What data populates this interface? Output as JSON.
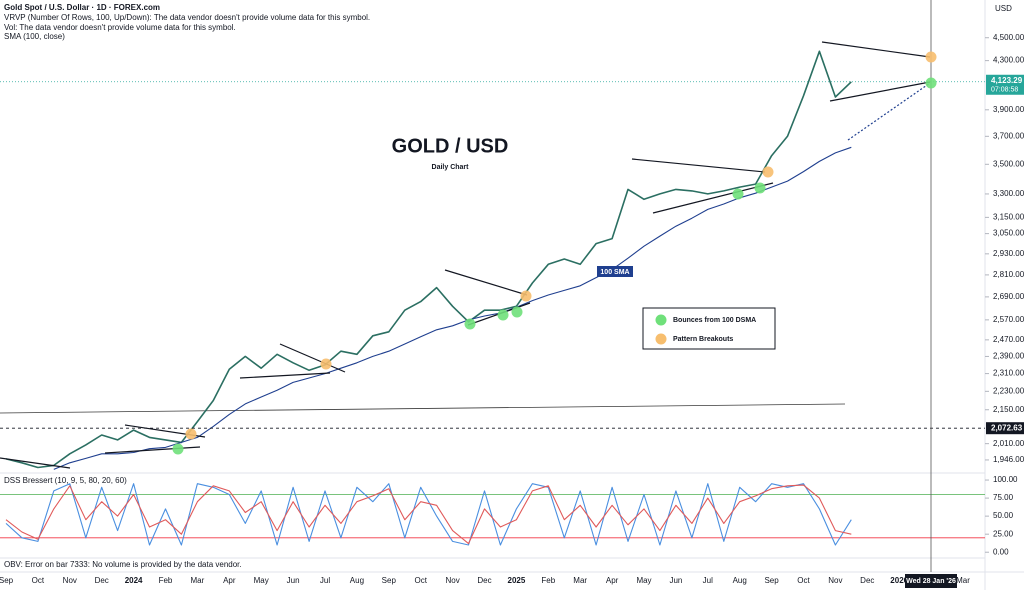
{
  "header": {
    "notes": [
      "VRVP (Number Of Rows, 100, Up/Down): The data vendor doesn't provide volume data for this symbol.",
      "Vol: The data vendor doesn't provide volume data for this symbol."
    ]
  },
  "chart_data": [
    {
      "type": "line",
      "title": "GOLD / USD",
      "subtitle": "Daily Chart",
      "currency": "USD",
      "categories": [
        "Sep",
        null,
        "Oct",
        null,
        "Nov",
        null,
        "Dec",
        null,
        "2024",
        null,
        "Feb",
        null,
        "Mar",
        null,
        "Apr",
        null,
        "May",
        null,
        "Jun",
        null,
        "Jul",
        null,
        "Aug",
        null,
        "Sep",
        null,
        "Oct",
        null,
        "Nov",
        null,
        "Dec",
        null,
        "2025",
        null,
        "Feb",
        null,
        "Mar",
        null,
        "Apr",
        null,
        "May",
        null,
        "Jun",
        null,
        "Jul",
        null,
        "Aug",
        null,
        "Sep",
        null,
        "Oct",
        null,
        "Nov",
        null,
        "Dec",
        null,
        "2026",
        null,
        null,
        null,
        "Mar"
      ],
      "log_scale": true,
      "grid": false,
      "ylim": [
        1900,
        4850
      ],
      "yticks": [
        {
          "value": 4500,
          "label": "4,500.00"
        },
        {
          "value": 4300,
          "label": "4,300.00"
        },
        {
          "value": 3900,
          "label": "3,900.00"
        },
        {
          "value": 3700,
          "label": "3,700.00"
        },
        {
          "value": 3500,
          "label": "3,500.00"
        },
        {
          "value": 3300,
          "label": "3,300.00"
        },
        {
          "value": 3150,
          "label": "3,150.00"
        },
        {
          "value": 3050,
          "label": "3,050.00"
        },
        {
          "value": 2930,
          "label": "2,930.00"
        },
        {
          "value": 2810,
          "label": "2,810.00"
        },
        {
          "value": 2690,
          "label": "2,690.00"
        },
        {
          "value": 2570,
          "label": "2,570.00"
        },
        {
          "value": 2470,
          "label": "2,470.00"
        },
        {
          "value": 2390,
          "label": "2,390.00"
        },
        {
          "value": 2310,
          "label": "2,310.00"
        },
        {
          "value": 2230,
          "label": "2,230.00"
        },
        {
          "value": 2150,
          "label": "2,150.00"
        },
        {
          "value": 2010,
          "label": "2,010.00"
        },
        {
          "value": 1946,
          "label": "1,946.00"
        }
      ],
      "series": [
        {
          "name": "Gold Spot / U.S. Dollar · 1D · FOREX.com",
          "color": "#2b6f62",
          "values": [
            1950,
            1935,
            1917,
            1925,
            1970,
            2005,
            2045,
            2025,
            2065,
            2035,
            2025,
            2015,
            2100,
            2190,
            2330,
            2390,
            2335,
            2400,
            2360,
            2325,
            2350,
            2415,
            2400,
            2490,
            2510,
            2620,
            2665,
            2740,
            2640,
            2560,
            2620,
            2620,
            2640,
            2765,
            2870,
            2900,
            2870,
            2990,
            3020,
            3330,
            3265,
            3300,
            3330,
            3320,
            3300,
            3320,
            3345,
            3365,
            3560,
            3700,
            4010,
            4380,
            4000,
            4123,
            null,
            null,
            null,
            null,
            null,
            null,
            null
          ]
        },
        {
          "name": "SMA (100, close)",
          "color": "#1f3f8f",
          "values": [
            null,
            null,
            null,
            1910,
            1935,
            1952,
            1970,
            1970,
            1975,
            1990,
            1995,
            2015,
            2035,
            2080,
            2130,
            2175,
            2205,
            2235,
            2270,
            2290,
            2310,
            2335,
            2360,
            2390,
            2415,
            2450,
            2485,
            2520,
            2540,
            2570,
            2590,
            2605,
            2635,
            2670,
            2700,
            2725,
            2750,
            2795,
            2840,
            2905,
            2975,
            3035,
            3095,
            3145,
            3200,
            3235,
            3275,
            3305,
            3345,
            3385,
            3450,
            3520,
            3580,
            3620,
            null,
            null,
            null,
            null,
            null,
            null,
            null
          ]
        }
      ],
      "sma_tag": "100 SMA",
      "legend": [
        "Bounces from 100 DSMA",
        "Pattern Breakouts"
      ],
      "last_price": {
        "value": 4123.29,
        "label": "4,123.29"
      },
      "countdown": "07:08:58",
      "level": {
        "value": 2072.63,
        "label": "2,072.63"
      },
      "crosshair_label": "Wed 28 Jan '26"
    },
    {
      "type": "line",
      "title": "DSS Bressert (10, 9, 5, 80, 20, 60)",
      "ylim": [
        -8,
        107
      ],
      "yticks": [
        {
          "value": 100,
          "label": "100.00"
        },
        {
          "value": 75,
          "label": "75.00"
        },
        {
          "value": 50,
          "label": "50.00"
        },
        {
          "value": 25,
          "label": "25.00"
        },
        {
          "value": 0,
          "label": "0.00"
        }
      ],
      "bands": [
        {
          "value": 80,
          "color": "#4caf50"
        },
        {
          "value": 20,
          "color": "#f23645"
        }
      ],
      "series": [
        {
          "color": "#4a8fe0",
          "values": [
            40,
            20,
            15,
            85,
            95,
            20,
            90,
            30,
            95,
            10,
            60,
            10,
            95,
            90,
            80,
            40,
            85,
            10,
            90,
            15,
            85,
            20,
            90,
            70,
            95,
            20,
            90,
            50,
            15,
            10,
            85,
            10,
            60,
            95,
            90,
            20,
            85,
            10,
            90,
            15,
            80,
            10,
            85,
            20,
            95,
            15,
            90,
            70,
            95,
            90,
            95,
            60,
            10,
            45,
            null,
            null,
            null,
            null,
            null,
            null,
            null
          ]
        },
        {
          "color": "#e05a5a",
          "values": [
            45,
            28,
            18,
            60,
            92,
            45,
            70,
            50,
            80,
            35,
            45,
            25,
            70,
            92,
            85,
            55,
            70,
            30,
            70,
            35,
            65,
            40,
            70,
            78,
            88,
            45,
            70,
            65,
            30,
            12,
            60,
            35,
            45,
            85,
            92,
            45,
            65,
            35,
            65,
            38,
            60,
            30,
            65,
            40,
            75,
            40,
            70,
            78,
            88,
            92,
            93,
            75,
            30,
            25,
            null,
            null,
            null,
            null,
            null,
            null,
            null
          ]
        }
      ]
    }
  ],
  "footer": "OBV: Error on bar 7333: No volume is provided by the data vendor."
}
